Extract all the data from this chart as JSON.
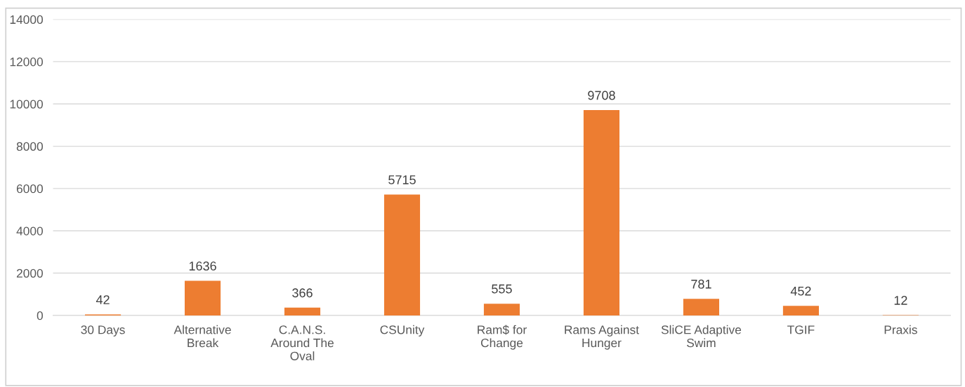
{
  "chart_data": {
    "type": "bar",
    "categories": [
      "30 Days",
      "Alternative\nBreak",
      "C.A.N.S.\nAround The\nOval",
      "CSUnity",
      "Ram$ for\nChange",
      "Rams Against\nHunger",
      "SliCE Adaptive\nSwim",
      "TGIF",
      "Praxis"
    ],
    "values": [
      42,
      1636,
      366,
      5715,
      555,
      9708,
      781,
      452,
      12
    ],
    "color": "#ed7d31",
    "ylim": [
      0,
      14000
    ],
    "yticks": [
      0,
      2000,
      4000,
      6000,
      8000,
      10000,
      12000,
      14000
    ],
    "grid": "y",
    "data_labels": true
  }
}
